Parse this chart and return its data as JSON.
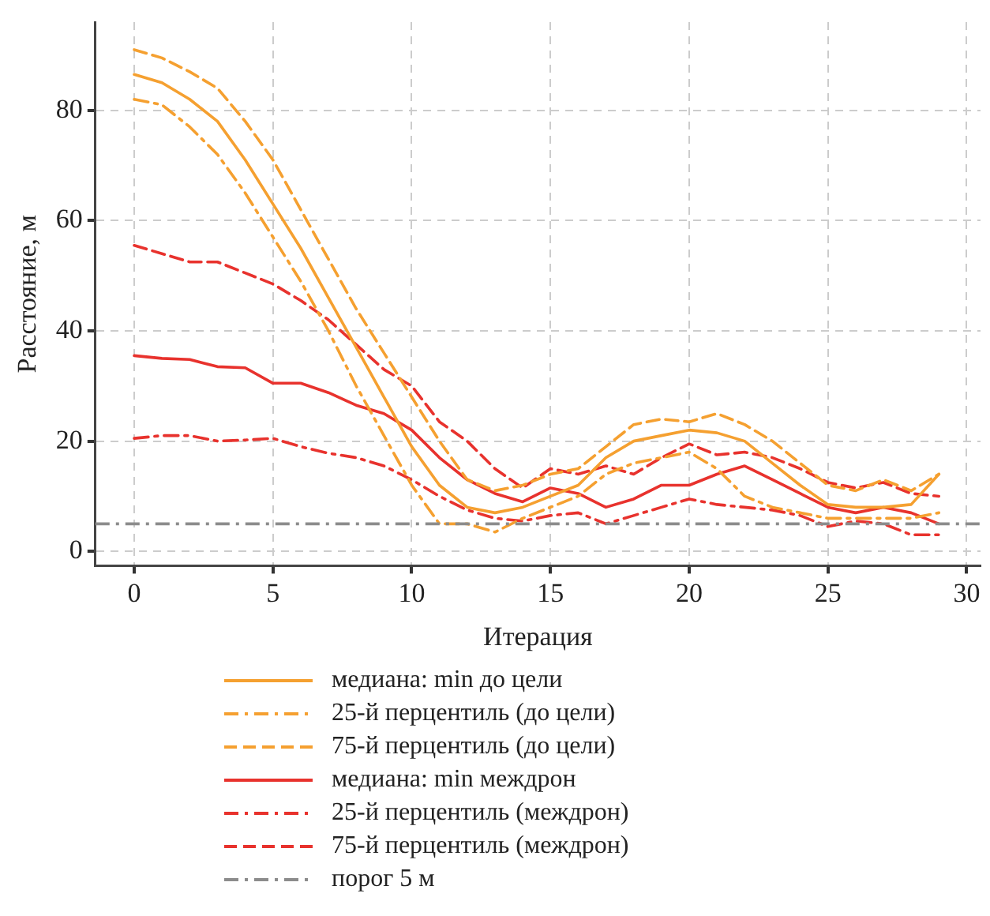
{
  "chart_data": {
    "type": "line",
    "xlabel": "Итерация",
    "ylabel": "Расстояние, м",
    "x": [
      0,
      1,
      2,
      3,
      4,
      5,
      6,
      7,
      8,
      9,
      10,
      11,
      12,
      13,
      14,
      15,
      16,
      17,
      18,
      19,
      20,
      21,
      22,
      23,
      24,
      25,
      26,
      27,
      28,
      29
    ],
    "xlim": [
      -1.4,
      30.5
    ],
    "xticks": [
      0,
      5,
      10,
      15,
      20,
      25,
      30
    ],
    "ylim": [
      -2.6,
      96
    ],
    "yticks": [
      0,
      20,
      40,
      60,
      80
    ],
    "grid": true,
    "legend": "bottom",
    "marker": "none",
    "series": [
      {
        "name": "медиана: min до цели",
        "color": "#f5a030",
        "line_style": "solid",
        "values": [
          86.5,
          85,
          82,
          78,
          71,
          63,
          55,
          46,
          37,
          28,
          19,
          12,
          8,
          7,
          8,
          10,
          12,
          17,
          20,
          21,
          22,
          21.5,
          20,
          16,
          12,
          8.5,
          8,
          8,
          8.5,
          14
        ]
      },
      {
        "name": "25-й перцентиль (до цели)",
        "color": "#f5a030",
        "line_style": "dashdot",
        "values": [
          82,
          81,
          77,
          72,
          65,
          57,
          49,
          40,
          30,
          21,
          12,
          5,
          5,
          3.5,
          6,
          8,
          10,
          14,
          16,
          17,
          18,
          15,
          10,
          8,
          7,
          6,
          6,
          6,
          6,
          7
        ]
      },
      {
        "name": "75-й перцентиль (до цели)",
        "color": "#f5a030",
        "line_style": "dashed",
        "values": [
          91,
          89.5,
          87,
          84,
          78,
          71,
          62,
          53,
          44,
          36,
          28,
          20,
          13,
          11,
          12,
          14,
          15,
          19,
          23,
          24,
          23.5,
          25,
          23,
          20,
          16,
          12,
          11,
          13,
          11,
          14
        ]
      },
      {
        "name": "медиана: min междрон",
        "color": "#e8322d",
        "line_style": "solid",
        "values": [
          35.5,
          35,
          34.8,
          33.5,
          33.3,
          30.5,
          30.5,
          28.8,
          26.5,
          25,
          22,
          17,
          13,
          10.5,
          9,
          11.5,
          10.5,
          8,
          9.5,
          12,
          12,
          14,
          15.5,
          13,
          10.5,
          8,
          7,
          8,
          7,
          5
        ]
      },
      {
        "name": "25-й перцентиль (междрон)",
        "color": "#e8322d",
        "line_style": "dashdot",
        "values": [
          20.5,
          21,
          21,
          20,
          20.2,
          20.5,
          19,
          17.8,
          17,
          15.5,
          13,
          10,
          7.5,
          6,
          5.5,
          6.5,
          7,
          5,
          6.5,
          8,
          9.5,
          8.5,
          8,
          7.5,
          6.5,
          4.5,
          5.5,
          5,
          3,
          3
        ]
      },
      {
        "name": "75-й перцентиль (междрон)",
        "color": "#e8322d",
        "line_style": "dashed",
        "values": [
          55.5,
          54,
          52.5,
          52.5,
          50.5,
          48.5,
          45.5,
          42,
          37.5,
          33,
          30,
          23.5,
          20,
          15,
          11.5,
          15,
          14,
          15.5,
          14,
          17,
          19.5,
          17.5,
          18,
          17,
          15,
          12.5,
          11.5,
          12.5,
          10.5,
          10
        ]
      }
    ],
    "ref_lines": [
      {
        "axis": "y",
        "value": 5,
        "label": "порог 5 м",
        "color": "#8c8c8c",
        "line_style": "dashdot"
      }
    ]
  }
}
